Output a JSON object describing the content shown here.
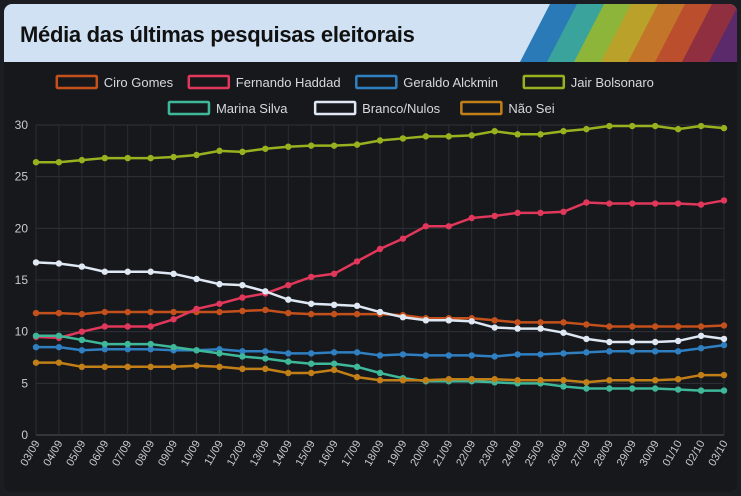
{
  "title": "Média das últimas pesquisas eleitorais",
  "stripe_colors": [
    "#2a7ab8",
    "#3aa39b",
    "#8db53a",
    "#b9a12a",
    "#c3752a",
    "#bb4f2d",
    "#8f2f3f",
    "#5a2a6b"
  ],
  "chart_data": {
    "type": "line",
    "x": [
      "03/09",
      "04/09",
      "05/09",
      "06/09",
      "07/09",
      "08/09",
      "09/09",
      "10/09",
      "11/09",
      "12/09",
      "13/09",
      "14/09",
      "15/09",
      "16/09",
      "17/09",
      "18/09",
      "19/09",
      "20/09",
      "21/09",
      "22/09",
      "23/09",
      "24/09",
      "25/09",
      "26/09",
      "27/09",
      "28/09",
      "29/09",
      "30/09",
      "01/10",
      "02/10",
      "03/10"
    ],
    "ylim": [
      0,
      30
    ],
    "yticks": [
      0,
      5,
      10,
      15,
      20,
      25,
      30
    ],
    "grid": true,
    "legend_position": "top",
    "series": [
      {
        "name": "Ciro Gomes",
        "color": "#c4511c",
        "values": [
          11.8,
          11.8,
          11.7,
          11.9,
          11.9,
          11.9,
          11.9,
          11.9,
          11.9,
          12.0,
          12.1,
          11.8,
          11.7,
          11.7,
          11.7,
          11.7,
          11.6,
          11.3,
          11.3,
          11.3,
          11.1,
          10.9,
          10.9,
          10.9,
          10.7,
          10.5,
          10.5,
          10.5,
          10.5,
          10.5,
          10.6
        ]
      },
      {
        "name": "Fernando Haddad",
        "color": "#e0375a",
        "values": [
          9.5,
          9.4,
          10.0,
          10.5,
          10.5,
          10.5,
          11.2,
          12.2,
          12.7,
          13.3,
          13.7,
          14.5,
          15.3,
          15.6,
          16.8,
          18.0,
          19.0,
          20.2,
          20.2,
          21.0,
          21.2,
          21.5,
          21.5,
          21.6,
          22.5,
          22.4,
          22.4,
          22.4,
          22.4,
          22.3,
          22.7
        ]
      },
      {
        "name": "Geraldo Alckmin",
        "color": "#2f7fc1",
        "values": [
          8.5,
          8.5,
          8.2,
          8.3,
          8.3,
          8.3,
          8.2,
          8.2,
          8.3,
          8.1,
          8.1,
          7.9,
          7.9,
          8.0,
          8.0,
          7.7,
          7.8,
          7.7,
          7.7,
          7.7,
          7.6,
          7.8,
          7.8,
          7.9,
          8.0,
          8.1,
          8.1,
          8.1,
          8.1,
          8.4,
          8.7
        ]
      },
      {
        "name": "Jair Bolsonaro",
        "color": "#97b11f",
        "values": [
          26.4,
          26.4,
          26.6,
          26.8,
          26.8,
          26.8,
          26.9,
          27.1,
          27.5,
          27.4,
          27.7,
          27.9,
          28.0,
          28.0,
          28.1,
          28.5,
          28.7,
          28.9,
          28.9,
          29.0,
          29.4,
          29.1,
          29.1,
          29.4,
          29.6,
          29.9,
          29.9,
          29.9,
          29.6,
          29.9,
          29.7
        ]
      },
      {
        "name": "Marina Silva",
        "color": "#3fb89a",
        "values": [
          9.6,
          9.6,
          9.2,
          8.8,
          8.8,
          8.8,
          8.5,
          8.2,
          7.9,
          7.6,
          7.4,
          7.1,
          6.9,
          6.9,
          6.6,
          6.0,
          5.5,
          5.2,
          5.2,
          5.2,
          5.1,
          5.0,
          5.0,
          4.7,
          4.5,
          4.5,
          4.5,
          4.5,
          4.4,
          4.3,
          4.3
        ]
      },
      {
        "name": "Branco/Nulos",
        "color": "#dfe8f3",
        "values": [
          16.7,
          16.6,
          16.3,
          15.8,
          15.8,
          15.8,
          15.6,
          15.1,
          14.6,
          14.5,
          13.9,
          13.1,
          12.7,
          12.6,
          12.5,
          11.9,
          11.4,
          11.1,
          11.1,
          11.0,
          10.4,
          10.3,
          10.3,
          9.9,
          9.3,
          9.0,
          9.0,
          9.0,
          9.1,
          9.6,
          9.3
        ]
      },
      {
        "name": "Não Sei",
        "color": "#c27f18",
        "values": [
          7.0,
          7.0,
          6.6,
          6.6,
          6.6,
          6.6,
          6.6,
          6.7,
          6.6,
          6.4,
          6.4,
          6.0,
          6.0,
          6.3,
          5.6,
          5.3,
          5.3,
          5.3,
          5.4,
          5.4,
          5.4,
          5.3,
          5.3,
          5.3,
          5.1,
          5.3,
          5.3,
          5.3,
          5.4,
          5.8,
          5.8
        ]
      }
    ]
  }
}
